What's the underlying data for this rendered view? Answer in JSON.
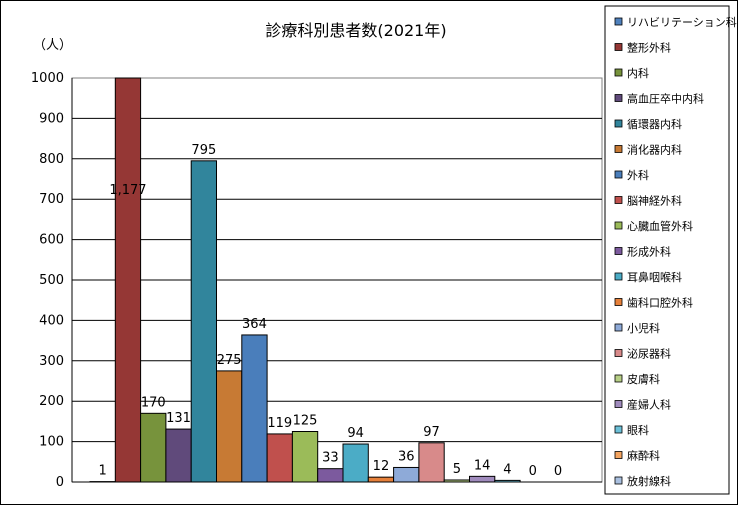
{
  "chart_data": {
    "type": "bar",
    "title": "診療科別患者数(2021年)",
    "ylabel": "（人）",
    "xlabel": "",
    "ylim": [
      0,
      1000
    ],
    "yticks": [
      0,
      100,
      200,
      300,
      400,
      500,
      600,
      700,
      800,
      900,
      1000
    ],
    "grid": true,
    "legend_position": "right",
    "series": [
      {
        "name": "リハビリテーション科",
        "value": 1,
        "label": "1",
        "color": "#4f81bd"
      },
      {
        "name": "整形外科",
        "value": 1177,
        "label": "1,177",
        "color": "#953735"
      },
      {
        "name": "内科",
        "value": 170,
        "label": "170",
        "color": "#77933c"
      },
      {
        "name": "高血圧卒中内科",
        "value": 131,
        "label": "131",
        "color": "#604a7b"
      },
      {
        "name": "循環器内科",
        "value": 795,
        "label": "795",
        "color": "#31859c"
      },
      {
        "name": "消化器内科",
        "value": 275,
        "label": "275",
        "color": "#c77a34"
      },
      {
        "name": "外科",
        "value": 364,
        "label": "364",
        "color": "#4a7ebb"
      },
      {
        "name": "脳神経外科",
        "value": 119,
        "label": "119",
        "color": "#c0504d"
      },
      {
        "name": "心臓血管外科",
        "value": 125,
        "label": "125",
        "color": "#9bbb59"
      },
      {
        "name": "形成外科",
        "value": 33,
        "label": "33",
        "color": "#7c5a9e"
      },
      {
        "name": "耳鼻咽喉科",
        "value": 94,
        "label": "94",
        "color": "#4bacc6"
      },
      {
        "name": "歯科口腔外科",
        "value": 12,
        "label": "12",
        "color": "#e6803a"
      },
      {
        "name": "小児科",
        "value": 36,
        "label": "36",
        "color": "#8eaad8"
      },
      {
        "name": "泌尿器科",
        "value": 97,
        "label": "97",
        "color": "#d88a8a"
      },
      {
        "name": "皮膚科",
        "value": 5,
        "label": "5",
        "color": "#b7cf86"
      },
      {
        "name": "産婦人科",
        "value": 14,
        "label": "14",
        "color": "#a08bbd"
      },
      {
        "name": "眼科",
        "value": 4,
        "label": "4",
        "color": "#6cc0d8"
      },
      {
        "name": "麻酔科",
        "value": 0,
        "label": "0",
        "color": "#f4a460"
      },
      {
        "name": "放射線科",
        "value": 0,
        "label": "0",
        "color": "#aac0e0"
      }
    ]
  }
}
